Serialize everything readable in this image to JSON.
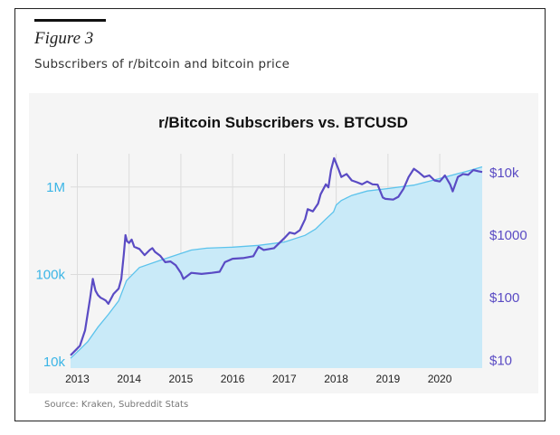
{
  "figure": {
    "label": "Figure 3",
    "subtitle": "Subscribers of r/bitcoin and bitcoin price",
    "source": "Source: Kraken, Subreddit Stats"
  },
  "colors": {
    "subscribers_fill": "#c9eaf8",
    "subscribers_line": "#5cc3ec",
    "price_line": "#5a4bc4",
    "left_axis_text": "#3bb5e6",
    "right_axis_text": "#5a4bc4",
    "plot_background": "#f4f4f4"
  },
  "chart_data": {
    "type": "line",
    "title": "r/Bitcoin Subscribers vs. BTCUSD",
    "grid": true,
    "x_range": [
      2012.87,
      2020.82
    ],
    "x_ticks": [
      "2013",
      "2014",
      "2015",
      "2016",
      "2017",
      "2018",
      "2019",
      "2020"
    ],
    "y_left": {
      "scale": "log",
      "range": [
        8500,
        2400000
      ],
      "ticks": [
        {
          "value": 10000,
          "label": "10k"
        },
        {
          "value": 100000,
          "label": "100k"
        },
        {
          "value": 1000000,
          "label": "1M"
        }
      ]
    },
    "y_right": {
      "scale": "log",
      "range": [
        7.5,
        20000
      ],
      "ticks": [
        {
          "value": 10,
          "label": "$10"
        },
        {
          "value": 100,
          "label": "$100"
        },
        {
          "value": 1000,
          "label": "$1000"
        },
        {
          "value": 10000,
          "label": "$10k"
        }
      ]
    },
    "series": [
      {
        "axis": "left",
        "style": "area",
        "x": [
          2012.87,
          2013.0,
          2013.2,
          2013.4,
          2013.6,
          2013.8,
          2013.95,
          2014.2,
          2014.6,
          2015.2,
          2015.5,
          2016.0,
          2016.5,
          2017.0,
          2017.4,
          2017.6,
          2017.8,
          2017.95,
          2018.0,
          2018.1,
          2018.3,
          2018.6,
          2019.0,
          2019.5,
          2020.0,
          2020.5,
          2020.82
        ],
        "y": [
          11000,
          13000,
          17000,
          25000,
          35000,
          50000,
          85000,
          120000,
          145000,
          190000,
          200000,
          205000,
          215000,
          235000,
          280000,
          330000,
          430000,
          520000,
          620000,
          700000,
          800000,
          900000,
          960000,
          1050000,
          1250000,
          1500000,
          1700000
        ]
      },
      {
        "axis": "right",
        "style": "line",
        "x": [
          2012.87,
          2012.95,
          2013.05,
          2013.15,
          2013.25,
          2013.3,
          2013.35,
          2013.4,
          2013.45,
          2013.5,
          2013.55,
          2013.6,
          2013.7,
          2013.8,
          2013.85,
          2013.9,
          2013.93,
          2013.96,
          2014.0,
          2014.05,
          2014.1,
          2014.2,
          2014.3,
          2014.4,
          2014.45,
          2014.5,
          2014.6,
          2014.7,
          2014.8,
          2014.9,
          2015.0,
          2015.05,
          2015.2,
          2015.4,
          2015.6,
          2015.75,
          2015.85,
          2016.0,
          2016.2,
          2016.4,
          2016.5,
          2016.6,
          2016.8,
          2017.0,
          2017.1,
          2017.2,
          2017.3,
          2017.4,
          2017.45,
          2017.55,
          2017.65,
          2017.7,
          2017.8,
          2017.85,
          2017.9,
          2017.96,
          2018.0,
          2018.05,
          2018.1,
          2018.2,
          2018.3,
          2018.4,
          2018.5,
          2018.6,
          2018.7,
          2018.8,
          2018.9,
          2018.95,
          2019.1,
          2019.2,
          2019.3,
          2019.4,
          2019.5,
          2019.6,
          2019.7,
          2019.8,
          2019.9,
          2020.0,
          2020.1,
          2020.2,
          2020.25,
          2020.35,
          2020.45,
          2020.55,
          2020.65,
          2020.75,
          2020.82
        ],
        "y": [
          12,
          14,
          17,
          30,
          100,
          200,
          130,
          110,
          100,
          95,
          90,
          80,
          115,
          140,
          200,
          500,
          1000,
          800,
          750,
          850,
          650,
          600,
          480,
          580,
          620,
          540,
          470,
          370,
          380,
          330,
          250,
          200,
          250,
          240,
          250,
          260,
          370,
          420,
          430,
          460,
          650,
          580,
          620,
          900,
          1100,
          1050,
          1200,
          1800,
          2600,
          2400,
          3200,
          4500,
          6500,
          5800,
          11000,
          17000,
          14000,
          11000,
          8500,
          9500,
          7500,
          7000,
          6500,
          7200,
          6500,
          6400,
          4000,
          3800,
          3700,
          4100,
          5500,
          8500,
          11500,
          10000,
          8500,
          9000,
          7500,
          7200,
          9000,
          6500,
          5000,
          8500,
          9500,
          9200,
          11000,
          10500,
          10200
        ]
      }
    ]
  }
}
